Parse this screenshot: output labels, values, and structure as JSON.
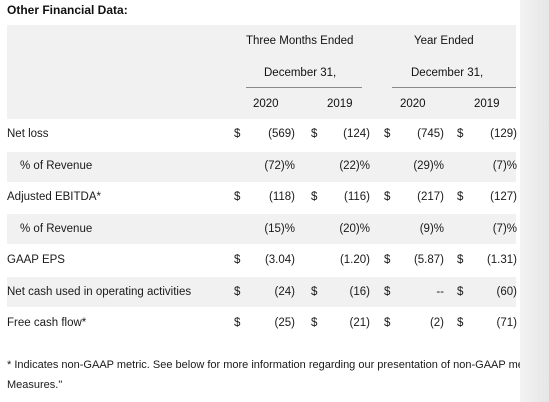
{
  "section_title": "Other Financial Data:",
  "header": {
    "three_months": "Three Months Ended",
    "year_ended": "Year Ended",
    "dec_a": "December 31,",
    "dec_b": "December 31,",
    "years": [
      "2020",
      "2019",
      "2020",
      "2019"
    ]
  },
  "rows": [
    {
      "label": "Net loss",
      "indent": false,
      "cells": [
        "$",
        "(569)",
        "$",
        "(124)",
        "$",
        "(745)",
        "$",
        "(129)"
      ]
    },
    {
      "label": "% of Revenue",
      "indent": true,
      "cells": [
        "",
        "(72)%",
        "",
        "(22)%",
        "",
        "(29)%",
        "",
        "(7)%"
      ]
    },
    {
      "label": "Adjusted EBITDA*",
      "indent": false,
      "cells": [
        "$",
        "(118)",
        "$",
        "(116)",
        "$",
        "(217)",
        "$",
        "(127)"
      ]
    },
    {
      "label": "% of Revenue",
      "indent": true,
      "cells": [
        "",
        "(15)%",
        "",
        "(20)%",
        "",
        "(9)%",
        "",
        "(7)%"
      ]
    },
    {
      "label": "GAAP EPS",
      "indent": false,
      "cells": [
        "$",
        "(3.04)",
        "",
        "(1.20)",
        "$",
        "(5.87)",
        "$",
        "(1.31)"
      ]
    },
    {
      "label": "Net cash used in operating activities",
      "indent": false,
      "cells": [
        "$",
        "(24)",
        "$",
        "(16)",
        "$",
        "--",
        "$",
        "(60)"
      ]
    },
    {
      "label": "Free cash flow*",
      "indent": false,
      "cells": [
        "$",
        "(25)",
        "$",
        "(21)",
        "$",
        "(2)",
        "$",
        "(71)"
      ]
    }
  ],
  "footnote_line1": "* Indicates non-GAAP metric. See below for more information regarding our presentation of non-GAAP met",
  "footnote_line2": "Measures.\""
}
